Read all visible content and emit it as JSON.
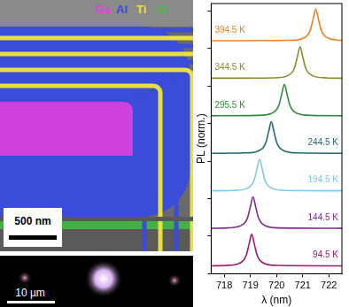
{
  "panels": {
    "sem_image": {
      "legend": [
        {
          "label": "Ga",
          "color": "#e040e0"
        },
        {
          "label": "Al",
          "color": "#3a4cd8"
        },
        {
          "label": "Ti",
          "color": "#e8e040"
        },
        {
          "label": "Si",
          "color": "#40c040"
        }
      ],
      "scale_bar": "500 nm"
    },
    "pl_image": {
      "scale_bar": "10 µm"
    }
  },
  "chart_data": {
    "type": "line",
    "x_label": "λ (nm)",
    "y_label": "PL (norm.)",
    "xlim": [
      717.5,
      722.5
    ],
    "xticks": [
      718,
      719,
      720,
      721,
      722
    ],
    "ylim": [
      0,
      7.2
    ],
    "yticks": [
      0,
      1,
      2,
      3,
      4,
      5,
      6,
      7
    ],
    "tick_labels": "x",
    "grid": false,
    "series": [
      {
        "name": "94.5 K",
        "color": "#a0186e",
        "x": [
          717.5,
          718.05,
          718.55,
          718.75,
          718.85,
          718.95,
          719.05,
          719.15,
          719.25,
          719.35,
          719.55,
          720.05,
          722.5
        ],
        "values": [
          0.21,
          0.22,
          0.27,
          0.37,
          0.51,
          0.79,
          1.05,
          0.79,
          0.51,
          0.37,
          0.27,
          0.22,
          0.21
        ]
      },
      {
        "name": "144.5 K",
        "color": "#7a2a8a",
        "x": [
          717.5,
          718.1,
          718.6,
          718.8,
          718.9,
          719.0,
          719.1,
          719.2,
          719.3,
          719.4,
          719.6,
          720.1,
          722.5
        ],
        "values": [
          1.21,
          1.22,
          1.27,
          1.37,
          1.51,
          1.79,
          2.05,
          1.79,
          1.51,
          1.37,
          1.27,
          1.22,
          1.21
        ]
      },
      {
        "name": "194.5 K",
        "color": "#7fc8e0",
        "x": [
          717.5,
          718.35,
          718.85,
          719.05,
          719.15,
          719.25,
          719.35,
          719.45,
          719.55,
          719.65,
          719.85,
          720.35,
          722.5
        ],
        "values": [
          2.21,
          2.22,
          2.27,
          2.37,
          2.51,
          2.79,
          3.05,
          2.79,
          2.51,
          2.37,
          2.27,
          2.22,
          2.21
        ]
      },
      {
        "name": "244.5 K",
        "color": "#1e6e6e",
        "x": [
          717.5,
          718.8,
          719.3,
          719.5,
          719.6,
          719.7,
          719.8,
          719.9,
          720.0,
          720.1,
          720.3,
          720.8,
          722.5
        ],
        "values": [
          3.21,
          3.22,
          3.27,
          3.37,
          3.51,
          3.79,
          4.05,
          3.79,
          3.51,
          3.37,
          3.27,
          3.22,
          3.21
        ]
      },
      {
        "name": "295.5 K",
        "color": "#2e8b3e",
        "x": [
          717.5,
          719.3,
          719.8,
          720.0,
          720.1,
          720.2,
          720.3,
          720.4,
          720.5,
          720.6,
          720.8,
          721.3,
          722.5
        ],
        "values": [
          4.21,
          4.22,
          4.27,
          4.37,
          4.51,
          4.79,
          5.05,
          4.79,
          4.51,
          4.37,
          4.27,
          4.22,
          4.21
        ]
      },
      {
        "name": "344.5 K",
        "color": "#8a8a2a",
        "x": [
          717.5,
          719.9,
          720.4,
          720.6,
          720.7,
          720.8,
          720.9,
          721.0,
          721.1,
          721.2,
          721.4,
          721.9,
          722.5
        ],
        "values": [
          5.21,
          5.22,
          5.27,
          5.37,
          5.51,
          5.79,
          6.05,
          5.79,
          5.51,
          5.37,
          5.27,
          5.22,
          5.21
        ]
      },
      {
        "name": "394.5 K",
        "color": "#f07f1e",
        "x": [
          717.5,
          720.5,
          721.0,
          721.2,
          721.3,
          721.4,
          721.5,
          721.6,
          721.7,
          721.8,
          722.0,
          722.5
        ],
        "values": [
          6.21,
          6.22,
          6.27,
          6.37,
          6.51,
          6.79,
          7.05,
          6.79,
          6.51,
          6.37,
          6.27,
          6.22
        ]
      }
    ]
  }
}
